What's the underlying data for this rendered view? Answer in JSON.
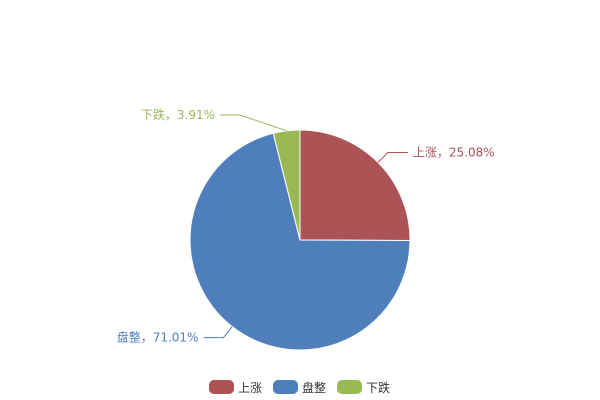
{
  "chart_data": {
    "type": "pie",
    "title": "",
    "slices": [
      {
        "name": "上涨",
        "value": 25.08,
        "label": "上涨，25.08%",
        "color": "#ac5356"
      },
      {
        "name": "盘整",
        "value": 71.01,
        "label": "盘整，71.01%",
        "color": "#4e7fbb"
      },
      {
        "name": "下跌",
        "value": 3.91,
        "label": "下跌，3.91%",
        "color": "#98b954"
      }
    ],
    "start_angle": "top",
    "direction": "clockwise",
    "legend_placement": "bottom"
  }
}
